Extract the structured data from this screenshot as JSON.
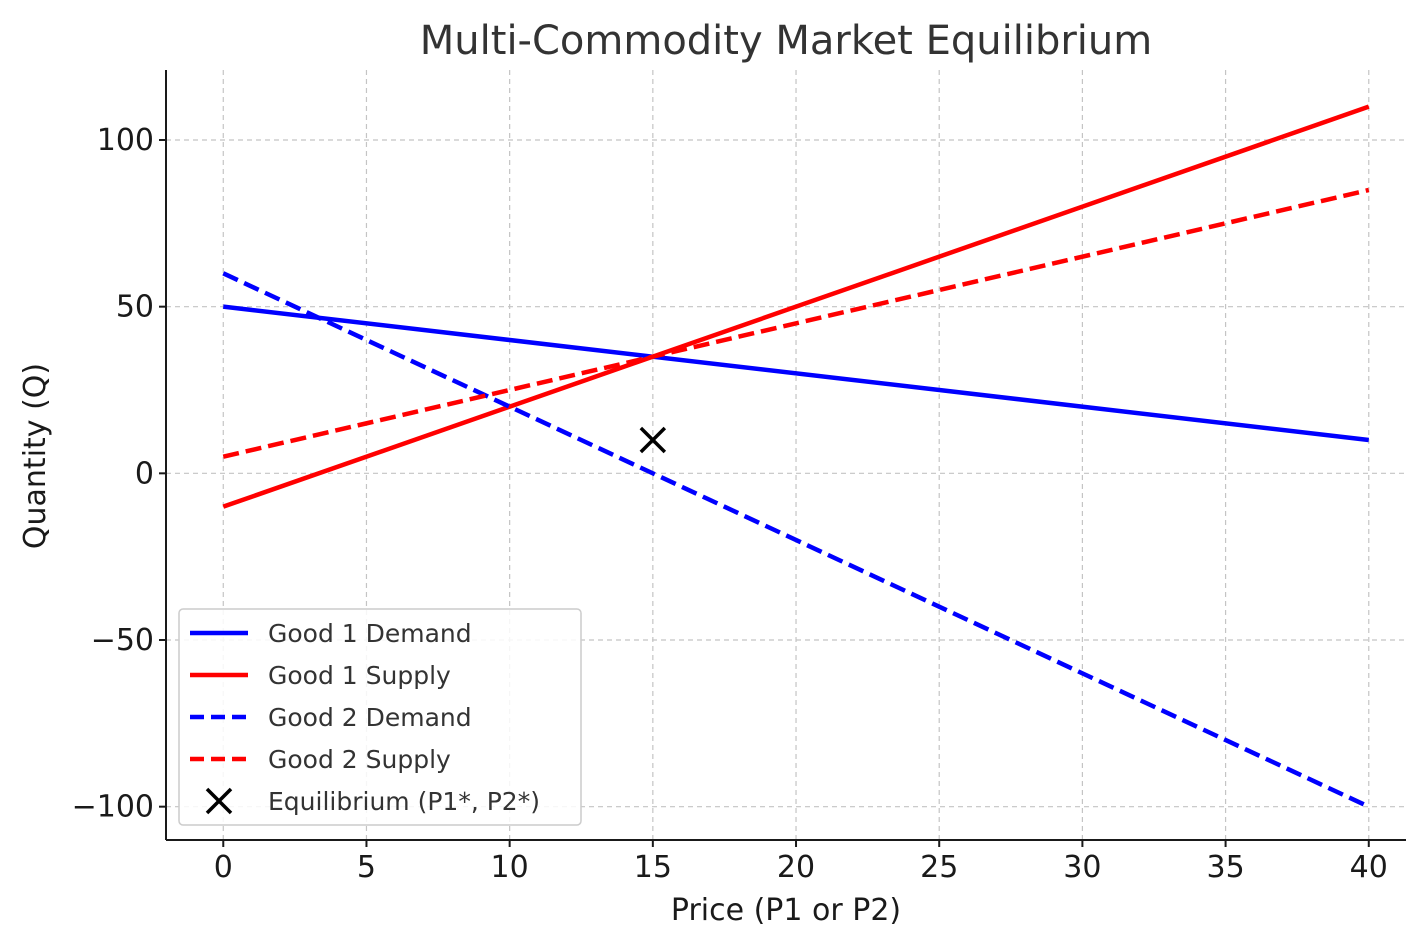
{
  "chart_data": {
    "type": "line",
    "title": "Multi-Commodity Market Equilibrium",
    "xlabel": "Price (P1 or P2)",
    "ylabel": "Quantity (Q)",
    "xlim": [
      -2,
      41.3
    ],
    "ylim": [
      -110,
      121
    ],
    "xticks": [
      0,
      5,
      10,
      15,
      20,
      25,
      30,
      35,
      40
    ],
    "yticks": [
      -100,
      -50,
      0,
      50,
      100
    ],
    "xtick_labels": [
      "0",
      "5",
      "10",
      "15",
      "20",
      "25",
      "30",
      "35",
      "40"
    ],
    "ytick_labels": [
      "−100",
      "−50",
      "0",
      "50",
      "100"
    ],
    "grid": true,
    "legend_position": "lower-left",
    "x": [
      0,
      40
    ],
    "series": [
      {
        "name": "Good 1 Demand",
        "x": [
          0,
          40
        ],
        "y": [
          50,
          10
        ],
        "color": "#0000ff",
        "style": "solid"
      },
      {
        "name": "Good 1 Supply",
        "x": [
          0,
          40
        ],
        "y": [
          -10,
          110
        ],
        "color": "#ff0000",
        "style": "solid"
      },
      {
        "name": "Good 2 Demand",
        "x": [
          0,
          40
        ],
        "y": [
          60,
          -100
        ],
        "color": "#0000ff",
        "style": "dashed"
      },
      {
        "name": "Good 2 Supply",
        "x": [
          0,
          40
        ],
        "y": [
          5,
          85
        ],
        "color": "#ff0000",
        "style": "dashed"
      }
    ],
    "markers": [
      {
        "name": "Equilibrium (P1*, P2*)",
        "x": 15,
        "y": 10,
        "symbol": "x",
        "color": "#000000"
      }
    ]
  }
}
